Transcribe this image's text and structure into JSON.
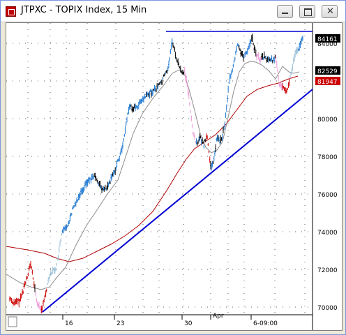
{
  "window": {
    "title": "JTPXC - TOPIX Index, 15 Min",
    "buttons": {
      "minimize": "minimize-icon",
      "maximize": "maximize-icon",
      "close": "close-icon"
    }
  },
  "chart_data": {
    "type": "candlestick",
    "y_axis_labels": [
      "70000",
      "72000",
      "74000",
      "76000",
      "78000",
      "80000",
      "82000",
      "84000"
    ],
    "x_axis_labels": [
      "16",
      "23",
      "30",
      "Apr",
      "6-09:00"
    ],
    "price_tags": [
      {
        "value": "84161",
        "color": "#000000"
      },
      {
        "value": "82529",
        "color": "#000000"
      },
      {
        "value": "81947",
        "color": "#cc0000"
      }
    ],
    "series": [
      {
        "name": "price",
        "colors": {
          "up": "#1e78d2",
          "down": "#000000",
          "pullback": "#f09ad8",
          "weak": "#cc0000",
          "neutral": "#9bbfd8"
        }
      },
      {
        "name": "fast-ma",
        "color": "#8c8c8c"
      },
      {
        "name": "slow-ma",
        "color": "#b00000"
      }
    ],
    "annotations": [
      {
        "type": "horizontal-line",
        "color": "#0000d4"
      },
      {
        "type": "trendline",
        "color": "#0000d4"
      }
    ],
    "grid": "dotted"
  }
}
